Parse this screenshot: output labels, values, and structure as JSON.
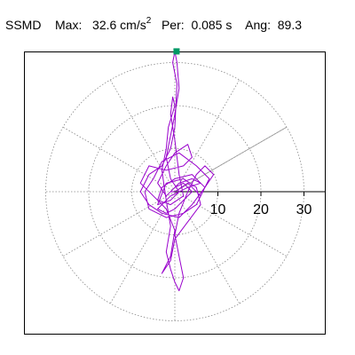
{
  "header": {
    "station": "SSMD",
    "max_label": "Max:",
    "max_value": "32.6",
    "max_unit": "cm/s",
    "max_unit_exp": "2",
    "per_label": "Per:",
    "per_value": "0.085 s",
    "ang_label": "Ang:",
    "ang_value": "89.3"
  },
  "chart_data": {
    "type": "polar-orbit",
    "title": "",
    "rings": [
      10,
      20,
      30
    ],
    "r_max": 35,
    "tick_labels": [
      "10",
      "20",
      "30"
    ],
    "spokes_deg": [
      0,
      30,
      60,
      90,
      120,
      150,
      180,
      210,
      240,
      270,
      300,
      330
    ],
    "grid": true,
    "peak": {
      "magnitude": 32.6,
      "angle_deg": 89.3
    },
    "colors": {
      "trace": "#9900cc",
      "peak_marker": "#009966",
      "grid": "#888888",
      "axis": "#000000"
    },
    "trace": {
      "closed": true,
      "points": [
        [
          0,
          0
        ],
        [
          3,
          2
        ],
        [
          6,
          -1
        ],
        [
          8,
          3
        ],
        [
          5,
          6
        ],
        [
          1,
          9
        ],
        [
          -3,
          7
        ],
        [
          -5,
          3
        ],
        [
          -7,
          0
        ],
        [
          -6,
          -4
        ],
        [
          -2,
          -6
        ],
        [
          2,
          -5
        ],
        [
          5,
          -3
        ],
        [
          7,
          1
        ],
        [
          4,
          4
        ],
        [
          0,
          3
        ],
        [
          -3,
          1
        ],
        [
          -4,
          -2
        ],
        [
          -1,
          -3
        ],
        [
          2,
          -1
        ],
        [
          1,
          4
        ],
        [
          0,
          12
        ],
        [
          -1,
          18
        ],
        [
          -0.5,
          22
        ],
        [
          0,
          20
        ],
        [
          -1.5,
          15
        ],
        [
          -2,
          10
        ],
        [
          -3,
          5
        ],
        [
          -2,
          -2
        ],
        [
          -1,
          -8
        ],
        [
          -2,
          -14
        ],
        [
          -1,
          -18
        ],
        [
          0,
          -21
        ],
        [
          1,
          -23
        ],
        [
          2,
          -20
        ],
        [
          1,
          -15
        ],
        [
          0,
          -10
        ],
        [
          1,
          -5
        ],
        [
          3,
          0
        ],
        [
          5,
          4
        ],
        [
          7,
          6
        ],
        [
          9,
          4
        ],
        [
          7,
          1
        ],
        [
          4,
          -3
        ],
        [
          1,
          -6
        ],
        [
          -3,
          -5
        ],
        [
          -6,
          -3
        ],
        [
          -8,
          0
        ],
        [
          -6,
          4
        ],
        [
          -3,
          6
        ],
        [
          -1,
          10
        ],
        [
          0,
          15
        ],
        [
          0.5,
          25
        ],
        [
          -0.5,
          30
        ],
        [
          0,
          32.6
        ],
        [
          0.5,
          30
        ],
        [
          1,
          24
        ],
        [
          0,
          18
        ],
        [
          -1,
          13
        ],
        [
          -2,
          8
        ],
        [
          -1,
          3
        ],
        [
          1,
          0
        ],
        [
          -1,
          -2
        ],
        [
          -4,
          -3
        ],
        [
          -2,
          2
        ],
        [
          2,
          3
        ],
        [
          5,
          1
        ],
        [
          6,
          -3
        ],
        [
          3,
          -7
        ],
        [
          0,
          -11
        ],
        [
          -1,
          -16
        ],
        [
          -3,
          -19
        ],
        [
          -1,
          -15
        ],
        [
          0,
          -9
        ],
        [
          -2,
          -4
        ],
        [
          -5,
          -1
        ],
        [
          -8,
          2
        ],
        [
          -6,
          6
        ],
        [
          -2,
          5
        ],
        [
          2,
          6
        ],
        [
          4,
          8
        ],
        [
          3,
          11
        ],
        [
          0,
          9
        ],
        [
          -2,
          6
        ],
        [
          -4,
          2
        ],
        [
          -2,
          -1
        ],
        [
          0,
          1
        ],
        [
          2,
          2
        ],
        [
          4,
          0
        ],
        [
          2,
          -2
        ],
        [
          0,
          -4
        ],
        [
          -2,
          -5
        ],
        [
          -4,
          -4
        ],
        [
          -1,
          -1
        ],
        [
          3,
          1
        ],
        [
          6,
          2
        ],
        [
          4,
          3
        ],
        [
          1,
          2
        ],
        [
          -1,
          0
        ],
        [
          0,
          0
        ]
      ]
    }
  }
}
